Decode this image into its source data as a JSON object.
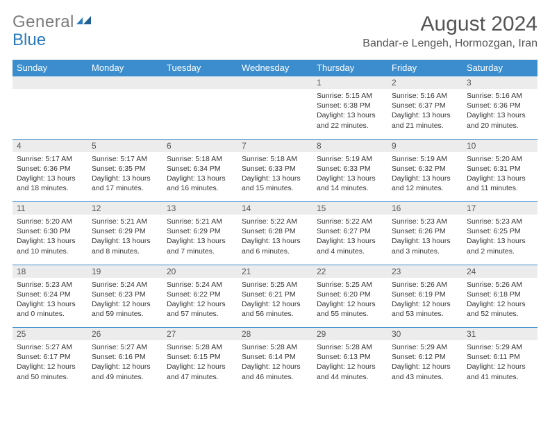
{
  "logo": {
    "text1": "General",
    "text2": "Blue"
  },
  "title": "August 2024",
  "location": "Bandar-e Lengeh, Hormozgan, Iran",
  "colors": {
    "header_bg": "#3c8dce",
    "header_fg": "#ffffff",
    "daynum_bg": "#ececec",
    "border": "#3c8dce",
    "logo_gray": "#7a7a7a",
    "logo_blue": "#2a7bbf"
  },
  "weekdays": [
    "Sunday",
    "Monday",
    "Tuesday",
    "Wednesday",
    "Thursday",
    "Friday",
    "Saturday"
  ],
  "weeks": [
    [
      null,
      null,
      null,
      null,
      {
        "n": "1",
        "sr": "5:15 AM",
        "ss": "6:38 PM",
        "dl": "13 hours and 22 minutes."
      },
      {
        "n": "2",
        "sr": "5:16 AM",
        "ss": "6:37 PM",
        "dl": "13 hours and 21 minutes."
      },
      {
        "n": "3",
        "sr": "5:16 AM",
        "ss": "6:36 PM",
        "dl": "13 hours and 20 minutes."
      }
    ],
    [
      {
        "n": "4",
        "sr": "5:17 AM",
        "ss": "6:36 PM",
        "dl": "13 hours and 18 minutes."
      },
      {
        "n": "5",
        "sr": "5:17 AM",
        "ss": "6:35 PM",
        "dl": "13 hours and 17 minutes."
      },
      {
        "n": "6",
        "sr": "5:18 AM",
        "ss": "6:34 PM",
        "dl": "13 hours and 16 minutes."
      },
      {
        "n": "7",
        "sr": "5:18 AM",
        "ss": "6:33 PM",
        "dl": "13 hours and 15 minutes."
      },
      {
        "n": "8",
        "sr": "5:19 AM",
        "ss": "6:33 PM",
        "dl": "13 hours and 14 minutes."
      },
      {
        "n": "9",
        "sr": "5:19 AM",
        "ss": "6:32 PM",
        "dl": "13 hours and 12 minutes."
      },
      {
        "n": "10",
        "sr": "5:20 AM",
        "ss": "6:31 PM",
        "dl": "13 hours and 11 minutes."
      }
    ],
    [
      {
        "n": "11",
        "sr": "5:20 AM",
        "ss": "6:30 PM",
        "dl": "13 hours and 10 minutes."
      },
      {
        "n": "12",
        "sr": "5:21 AM",
        "ss": "6:29 PM",
        "dl": "13 hours and 8 minutes."
      },
      {
        "n": "13",
        "sr": "5:21 AM",
        "ss": "6:29 PM",
        "dl": "13 hours and 7 minutes."
      },
      {
        "n": "14",
        "sr": "5:22 AM",
        "ss": "6:28 PM",
        "dl": "13 hours and 6 minutes."
      },
      {
        "n": "15",
        "sr": "5:22 AM",
        "ss": "6:27 PM",
        "dl": "13 hours and 4 minutes."
      },
      {
        "n": "16",
        "sr": "5:23 AM",
        "ss": "6:26 PM",
        "dl": "13 hours and 3 minutes."
      },
      {
        "n": "17",
        "sr": "5:23 AM",
        "ss": "6:25 PM",
        "dl": "13 hours and 2 minutes."
      }
    ],
    [
      {
        "n": "18",
        "sr": "5:23 AM",
        "ss": "6:24 PM",
        "dl": "13 hours and 0 minutes."
      },
      {
        "n": "19",
        "sr": "5:24 AM",
        "ss": "6:23 PM",
        "dl": "12 hours and 59 minutes."
      },
      {
        "n": "20",
        "sr": "5:24 AM",
        "ss": "6:22 PM",
        "dl": "12 hours and 57 minutes."
      },
      {
        "n": "21",
        "sr": "5:25 AM",
        "ss": "6:21 PM",
        "dl": "12 hours and 56 minutes."
      },
      {
        "n": "22",
        "sr": "5:25 AM",
        "ss": "6:20 PM",
        "dl": "12 hours and 55 minutes."
      },
      {
        "n": "23",
        "sr": "5:26 AM",
        "ss": "6:19 PM",
        "dl": "12 hours and 53 minutes."
      },
      {
        "n": "24",
        "sr": "5:26 AM",
        "ss": "6:18 PM",
        "dl": "12 hours and 52 minutes."
      }
    ],
    [
      {
        "n": "25",
        "sr": "5:27 AM",
        "ss": "6:17 PM",
        "dl": "12 hours and 50 minutes."
      },
      {
        "n": "26",
        "sr": "5:27 AM",
        "ss": "6:16 PM",
        "dl": "12 hours and 49 minutes."
      },
      {
        "n": "27",
        "sr": "5:28 AM",
        "ss": "6:15 PM",
        "dl": "12 hours and 47 minutes."
      },
      {
        "n": "28",
        "sr": "5:28 AM",
        "ss": "6:14 PM",
        "dl": "12 hours and 46 minutes."
      },
      {
        "n": "29",
        "sr": "5:28 AM",
        "ss": "6:13 PM",
        "dl": "12 hours and 44 minutes."
      },
      {
        "n": "30",
        "sr": "5:29 AM",
        "ss": "6:12 PM",
        "dl": "12 hours and 43 minutes."
      },
      {
        "n": "31",
        "sr": "5:29 AM",
        "ss": "6:11 PM",
        "dl": "12 hours and 41 minutes."
      }
    ]
  ],
  "labels": {
    "sunrise": "Sunrise: ",
    "sunset": "Sunset: ",
    "daylight": "Daylight: "
  }
}
